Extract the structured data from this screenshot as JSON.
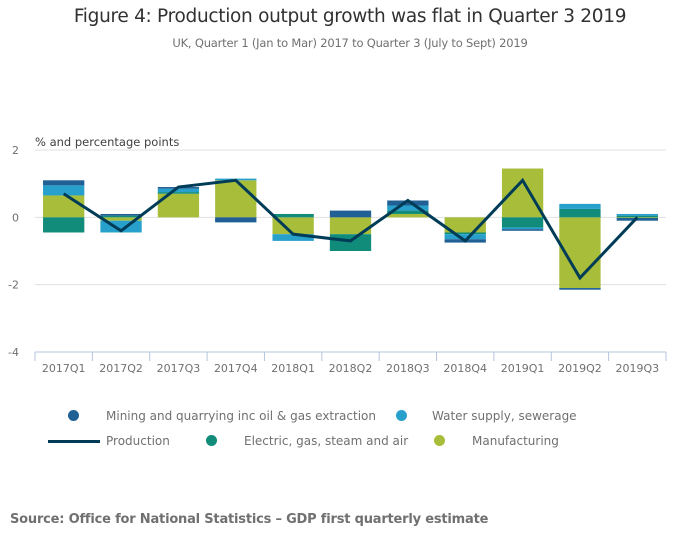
{
  "chart_data": {
    "type": "bar",
    "stacked": true,
    "title": "Figure 4: Production output growth was flat in Quarter 3 2019",
    "subtitle": "UK, Quarter 1 (Jan to Mar) 2017 to Quarter 3 (July to Sept) 2019",
    "ylabel": "% and percentage points",
    "xlabel": "",
    "ylim": [
      -4,
      2
    ],
    "yticks": [
      2,
      0,
      -2,
      -4
    ],
    "ytick_labels": [
      "2",
      "0",
      "-2",
      "-4"
    ],
    "grid": true,
    "legend_position": "bottom",
    "categories": [
      "2017Q1",
      "2017Q2",
      "2017Q3",
      "2017Q4",
      "2018Q1",
      "2018Q2",
      "2018Q3",
      "2018Q4",
      "2019Q1",
      "2019Q2",
      "2019Q3"
    ],
    "series": [
      {
        "name": "Manufacturing",
        "type": "bar",
        "color": "#a8bd3a",
        "values": [
          0.65,
          -0.1,
          0.7,
          1.1,
          -0.5,
          -0.5,
          0.1,
          -0.45,
          1.45,
          -2.1,
          -0.02
        ]
      },
      {
        "name": "Electric, gas, steam and air",
        "type": "bar",
        "color": "#118c7b",
        "values": [
          -0.45,
          0.05,
          0.05,
          0.0,
          0.1,
          -0.5,
          0.1,
          -0.05,
          -0.3,
          0.25,
          0.05
        ]
      },
      {
        "name": "Water supply, sewerage",
        "type": "bar",
        "color": "#27a0cc",
        "values": [
          0.3,
          -0.35,
          0.1,
          0.05,
          -0.2,
          0.0,
          0.15,
          -0.15,
          -0.05,
          0.15,
          0.05
        ]
      },
      {
        "name": "Mining and quarrying inc oil & gas extraction",
        "type": "bar",
        "color": "#206095",
        "values": [
          0.15,
          0.05,
          0.05,
          -0.15,
          0.0,
          0.2,
          0.15,
          -0.1,
          -0.05,
          -0.05,
          -0.08
        ]
      },
      {
        "name": "Production",
        "type": "line",
        "color": "#003c57",
        "values": [
          0.7,
          -0.4,
          0.9,
          1.1,
          -0.5,
          -0.7,
          0.5,
          -0.7,
          1.1,
          -1.8,
          0.0
        ]
      }
    ]
  },
  "legend": [
    {
      "label": "Mining and quarrying inc oil & gas extraction",
      "color": "#206095",
      "kind": "dot"
    },
    {
      "label": "Water supply, sewerage",
      "color": "#27a0cc",
      "kind": "dot"
    },
    {
      "label": "Production",
      "color": "#003c57",
      "kind": "line"
    },
    {
      "label": "Electric, gas, steam and air",
      "color": "#118c7b",
      "kind": "dot"
    },
    {
      "label": "Manufacturing",
      "color": "#a8bd3a",
      "kind": "dot"
    }
  ],
  "source": "Source: Office for National Statistics – GDP first quarterly estimate"
}
